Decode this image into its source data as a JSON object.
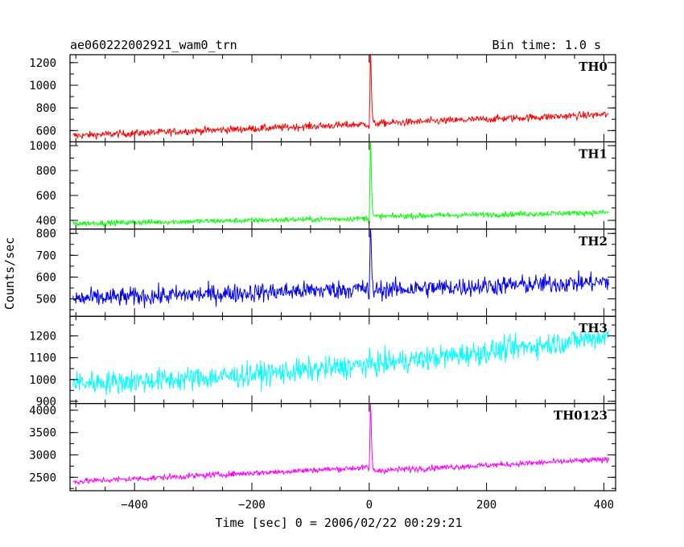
{
  "chart_data": {
    "type": "line",
    "title_left": "ae060222002921_wam0_trn",
    "title_right": "Bin time: 1.0 s",
    "xlabel": "Time [sec] 0 = 2006/02/22 00:29:21",
    "ylabel": "Counts/sec",
    "xlim": [
      -510,
      420
    ],
    "x_ticks": [
      -400,
      -200,
      0,
      200,
      400
    ],
    "x_tick_labels": [
      "−400",
      "−200",
      "0",
      "200",
      "400"
    ],
    "grid": false,
    "panels": [
      {
        "name": "TH0",
        "color": "#ff0000",
        "ylim": [
          500,
          1270
        ],
        "y_ticks": [
          600,
          800,
          1000,
          1200
        ],
        "start_level": 555,
        "end_level": 740,
        "noise": 30,
        "burst_time": 2,
        "burst_peak": 1290,
        "post_burst_level": 660,
        "trend": "linear"
      },
      {
        "name": "TH1",
        "color": "#00ff00",
        "ylim": [
          330,
          1030
        ],
        "y_ticks": [
          400,
          600,
          800,
          1000
        ],
        "start_level": 375,
        "end_level": 450,
        "noise": 20,
        "burst_time": 2,
        "burst_peak": 1040,
        "post_burst_level": 430,
        "trend": "linear"
      },
      {
        "name": "TH2",
        "color": "#0000ff",
        "ylim": [
          420,
          820
        ],
        "y_ticks": [
          500,
          600,
          700,
          800
        ],
        "start_level": 500,
        "end_level": 585,
        "noise": 40,
        "burst_time": 2,
        "burst_peak": 830,
        "post_burst_level": 540,
        "trend": "linear"
      },
      {
        "name": "TH3",
        "color": "#00ffff",
        "ylim": [
          890,
          1290
        ],
        "y_ticks": [
          900,
          1000,
          1100,
          1200
        ],
        "start_level": 985,
        "end_level": 1200,
        "noise": 50,
        "burst_time": null,
        "burst_peak": null,
        "post_burst_level": null,
        "trend": "accelerating"
      },
      {
        "name": "TH0123",
        "color": "#ff00ff",
        "ylim": [
          2200,
          4150
        ],
        "y_ticks": [
          2500,
          3000,
          3500,
          4000
        ],
        "start_level": 2400,
        "end_level": 2980,
        "noise": 60,
        "burst_time": 2,
        "burst_peak": 4150,
        "post_burst_level": 2640,
        "trend": "linear"
      }
    ]
  }
}
